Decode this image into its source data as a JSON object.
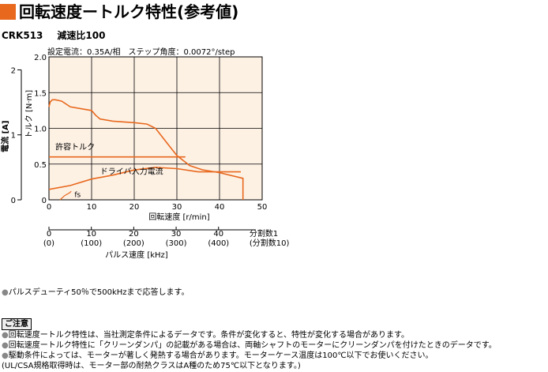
{
  "header": {
    "title": "回転速度ートルク特性(参考値)"
  },
  "model": {
    "name": "CRK513",
    "ratio": "減速比100"
  },
  "conditions": "設定電流：0.35A/相　ステップ角度：0.0072°/step",
  "chart_data": {
    "type": "line",
    "xlabel": "回転速度 [r/min]",
    "xlim": [
      0,
      50
    ],
    "x_ticks": [
      "0",
      "10",
      "20",
      "30",
      "40",
      "50"
    ],
    "y_torque": {
      "label": "トルク [N·m]",
      "lim": [
        0,
        2.0
      ],
      "ticks": [
        "0",
        "0.5",
        "1.0",
        "1.5",
        "2.0"
      ]
    },
    "y_current": {
      "label": "電流 [A]",
      "lim": [
        0,
        2.2
      ],
      "ticks": [
        "0",
        "1",
        "2"
      ]
    },
    "pulse_axis": {
      "label": "パルス速度 [kHz]",
      "ticks1": [
        "0",
        "10",
        "20",
        "30",
        "40"
      ],
      "ticks2": [
        "(0)",
        "(100)",
        "(200)",
        "(300)",
        "(400)"
      ],
      "legend1": "分割数1",
      "legend2": "(分割数10)"
    },
    "series": [
      {
        "name": "トルク",
        "axis": "torque",
        "color": "#e8681e",
        "x": [
          0,
          0.3,
          0.8,
          1.5,
          3,
          5,
          8,
          10,
          11,
          12,
          15,
          20,
          23,
          25,
          28,
          30,
          33,
          36,
          40,
          45.5,
          45.5
        ],
        "y": [
          1.3,
          1.37,
          1.4,
          1.4,
          1.38,
          1.3,
          1.27,
          1.25,
          1.18,
          1.13,
          1.1,
          1.08,
          1.06,
          1.0,
          0.77,
          0.62,
          0.48,
          0.42,
          0.38,
          0.3,
          0.0
        ]
      },
      {
        "name": "許容トルク",
        "axis": "torque",
        "color": "#e8681e",
        "x": [
          0,
          32
        ],
        "y": [
          0.6,
          0.6
        ]
      },
      {
        "name": "ドライバ入力電流",
        "axis": "current",
        "color": "#e8681e",
        "x": [
          0,
          5,
          10,
          15,
          20,
          25,
          30,
          35,
          40,
          45
        ],
        "y": [
          0.16,
          0.22,
          0.32,
          0.38,
          0.46,
          0.5,
          0.48,
          0.43,
          0.43,
          0.43
        ]
      },
      {
        "name": "fs",
        "axis": "torque",
        "color": "#e8681e",
        "x": [
          2.6,
          3.7,
          4.9,
          5.2
        ],
        "y": [
          0.0,
          0.06,
          0.1,
          0.12
        ]
      }
    ],
    "background": "#fdf1e4",
    "grid": true
  },
  "notes": {
    "bullet": "パルスデューティ50％で500kHzまで応答します。",
    "heading": "ご注意",
    "items": [
      "回転速度ートルク特性は、当社測定条件によるデータです。条件が変化すると、特性が変化する場合があります。",
      "回転速度ートルク特性に「クリーンダンパ」の記載がある場合は、両軸シャフトのモーターにクリーンダンパを付けたときのデータです。",
      "駆動条件によっては、モーターが著しく発熱する場合があります。モーターケース温度は100℃以下でお使いください。",
      "(UL/CSA規格取得時は、モーター部の耐熱クラスはA種のため75℃以下となります。)"
    ]
  }
}
